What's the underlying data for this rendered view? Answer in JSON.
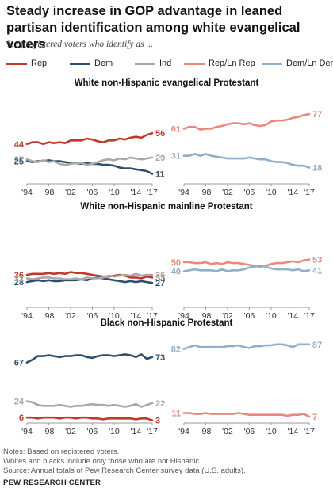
{
  "title": "Steady increase in GOP advantage in leaned partisan identification among white evangelical voters",
  "subtitle": "% of registered voters who identify as ...",
  "legend": [
    {
      "name": "Rep",
      "color": "#c0392b"
    },
    {
      "name": "Dem",
      "color": "#2c4f6e"
    },
    {
      "name": "Ind",
      "color": "#a8a8a8"
    },
    {
      "name": "Rep/Ln Rep",
      "color": "#e8897c"
    },
    {
      "name": "Dem/Ln Dem",
      "color": "#8fb0c8"
    }
  ],
  "panel_titles": [
    "White non-Hispanic evangelical Protestant",
    "White non-Hispanic mainline Protestant",
    "Black non-Hispanic Protestant"
  ],
  "notes": [
    "Notes: Based on registered voters.",
    "Whites and blacks include only those who are not Hispanic.",
    "Source: Annual totals of Pew Research Center survey data (U.S. adults)."
  ],
  "brand": "PEW RESEARCH CENTER",
  "chart_data": [
    {
      "type": "line",
      "panel": "White non-Hispanic evangelical Protestant",
      "x": [
        1994,
        1995,
        1996,
        1997,
        1998,
        1999,
        2000,
        2001,
        2002,
        2003,
        2004,
        2005,
        2006,
        2007,
        2008,
        2009,
        2010,
        2011,
        2012,
        2013,
        2014,
        2015,
        2016,
        2017
      ],
      "xticks": [
        "'94",
        "'98",
        "'02",
        "'06",
        "'10",
        "'14",
        "'17"
      ],
      "ylim": [
        0,
        100
      ],
      "series": [
        {
          "name": "Rep",
          "color": "#c0392b",
          "values": [
            44,
            46,
            46,
            44,
            46,
            45,
            46,
            45,
            48,
            48,
            48,
            50,
            49,
            47,
            46,
            48,
            48,
            50,
            49,
            51,
            52,
            51,
            54,
            56
          ],
          "start_label": "44",
          "end_label": "56"
        },
        {
          "name": "Dem",
          "color": "#2c4f6e",
          "values": [
            25,
            24,
            25,
            25,
            26,
            25,
            25,
            24,
            23,
            23,
            22,
            23,
            22,
            22,
            21,
            21,
            20,
            18,
            17,
            17,
            16,
            15,
            14,
            11
          ],
          "start_label": "25",
          "end_label": "11"
        },
        {
          "name": "Ind",
          "color": "#a8a8a8",
          "values": [
            27,
            25,
            24,
            26,
            24,
            25,
            22,
            21,
            22,
            23,
            23,
            21,
            22,
            24,
            26,
            27,
            26,
            28,
            27,
            29,
            28,
            27,
            28,
            29
          ],
          "start_label": "27",
          "end_label": "29"
        }
      ]
    },
    {
      "type": "line",
      "panel": "White non-Hispanic evangelical Protestant",
      "x": [
        1994,
        1995,
        1996,
        1997,
        1998,
        1999,
        2000,
        2001,
        2002,
        2003,
        2004,
        2005,
        2006,
        2007,
        2008,
        2009,
        2010,
        2011,
        2012,
        2013,
        2014,
        2015,
        2016,
        2017
      ],
      "xticks": [
        "'94",
        "'98",
        "'02",
        "'06",
        "'10",
        "'14",
        "'17"
      ],
      "ylim": [
        0,
        100
      ],
      "series": [
        {
          "name": "Rep/Ln Rep",
          "color": "#e8897c",
          "values": [
            61,
            63,
            63,
            60,
            61,
            61,
            63,
            64,
            66,
            67,
            67,
            66,
            67,
            65,
            64,
            65,
            69,
            70,
            70,
            71,
            73,
            74,
            76,
            77
          ],
          "start_label": "61",
          "end_label": "77"
        },
        {
          "name": "Dem/Ln Dem",
          "color": "#8fb0c8",
          "values": [
            31,
            31,
            33,
            31,
            33,
            31,
            30,
            29,
            28,
            28,
            28,
            28,
            29,
            28,
            27,
            27,
            25,
            24,
            24,
            23,
            21,
            20,
            20,
            18
          ],
          "start_label": "31",
          "end_label": "18"
        }
      ]
    },
    {
      "type": "line",
      "panel": "White non-Hispanic mainline Protestant",
      "x": [
        1994,
        1995,
        1996,
        1997,
        1998,
        1999,
        2000,
        2001,
        2002,
        2003,
        2004,
        2005,
        2006,
        2007,
        2008,
        2009,
        2010,
        2011,
        2012,
        2013,
        2014,
        2015,
        2016,
        2017
      ],
      "xticks": [
        "'94",
        "'98",
        "'02",
        "'06",
        "'10",
        "'14",
        "'17"
      ],
      "ylim": [
        0,
        100
      ],
      "series": [
        {
          "name": "Rep",
          "color": "#c0392b",
          "values": [
            36,
            37,
            37,
            37,
            38,
            37,
            38,
            37,
            39,
            38,
            38,
            37,
            36,
            35,
            34,
            34,
            35,
            36,
            35,
            33,
            33,
            32,
            34,
            33
          ],
          "start_label": "36",
          "end_label": "33"
        },
        {
          "name": "Dem",
          "color": "#2c4f6e",
          "values": [
            28,
            29,
            30,
            29,
            30,
            29,
            29,
            30,
            30,
            30,
            31,
            30,
            32,
            33,
            32,
            31,
            30,
            29,
            28,
            29,
            28,
            29,
            28,
            27
          ],
          "start_label": "28",
          "end_label": "27"
        },
        {
          "name": "Ind",
          "color": "#a8a8a8",
          "values": [
            32,
            31,
            32,
            33,
            33,
            32,
            32,
            31,
            31,
            32,
            31,
            33,
            32,
            32,
            33,
            35,
            34,
            35,
            36,
            35,
            37,
            35,
            36,
            36
          ],
          "start_label": "32",
          "end_label": "36"
        }
      ]
    },
    {
      "type": "line",
      "panel": "White non-Hispanic mainline Protestant",
      "x": [
        1994,
        1995,
        1996,
        1997,
        1998,
        1999,
        2000,
        2001,
        2002,
        2003,
        2004,
        2005,
        2006,
        2007,
        2008,
        2009,
        2010,
        2011,
        2012,
        2013,
        2014,
        2015,
        2016,
        2017
      ],
      "xticks": [
        "'94",
        "'98",
        "'02",
        "'06",
        "'10",
        "'14",
        "'17"
      ],
      "ylim": [
        0,
        100
      ],
      "series": [
        {
          "name": "Rep/Ln Rep",
          "color": "#e8897c",
          "values": [
            50,
            50,
            49,
            49,
            50,
            48,
            49,
            48,
            50,
            49,
            49,
            48,
            47,
            46,
            45,
            46,
            48,
            49,
            49,
            50,
            51,
            50,
            52,
            53
          ],
          "start_label": "50",
          "end_label": "53"
        },
        {
          "name": "Dem/Ln Dem",
          "color": "#8fb0c8",
          "values": [
            40,
            41,
            42,
            41,
            41,
            41,
            40,
            42,
            40,
            41,
            41,
            42,
            44,
            45,
            46,
            45,
            43,
            42,
            42,
            42,
            41,
            42,
            40,
            41
          ],
          "start_label": "40",
          "end_label": "41"
        }
      ]
    },
    {
      "type": "line",
      "panel": "Black non-Hispanic Protestant",
      "x": [
        1994,
        1995,
        1996,
        1997,
        1998,
        1999,
        2000,
        2001,
        2002,
        2003,
        2004,
        2005,
        2006,
        2007,
        2008,
        2009,
        2010,
        2011,
        2012,
        2013,
        2014,
        2015,
        2016,
        2017
      ],
      "xticks": [
        "'94",
        "'98",
        "'02",
        "'06",
        "'10",
        "'14",
        "'17"
      ],
      "ylim": [
        0,
        100
      ],
      "series": [
        {
          "name": "Rep",
          "color": "#c0392b",
          "values": [
            6,
            6,
            5,
            6,
            6,
            6,
            5,
            6,
            6,
            5,
            6,
            6,
            5,
            5,
            4,
            5,
            5,
            5,
            5,
            5,
            4,
            5,
            5,
            3
          ],
          "start_label": "6",
          "end_label": "3"
        },
        {
          "name": "Dem",
          "color": "#2c4f6e",
          "values": [
            67,
            70,
            74,
            74,
            75,
            74,
            73,
            74,
            74,
            75,
            75,
            73,
            72,
            74,
            75,
            75,
            74,
            75,
            76,
            75,
            73,
            76,
            71,
            73
          ],
          "start_label": "67",
          "end_label": "73"
        },
        {
          "name": "Ind",
          "color": "#a8a8a8",
          "values": [
            24,
            23,
            20,
            19,
            19,
            19,
            20,
            19,
            18,
            19,
            19,
            20,
            21,
            20,
            20,
            19,
            20,
            19,
            18,
            19,
            21,
            18,
            20,
            22
          ],
          "start_label": "24",
          "end_label": "22"
        }
      ]
    },
    {
      "type": "line",
      "panel": "Black non-Hispanic Protestant",
      "x": [
        1994,
        1995,
        1996,
        1997,
        1998,
        1999,
        2000,
        2001,
        2002,
        2003,
        2004,
        2005,
        2006,
        2007,
        2008,
        2009,
        2010,
        2011,
        2012,
        2013,
        2014,
        2015,
        2016,
        2017
      ],
      "xticks": [
        "'94",
        "'98",
        "'02",
        "'06",
        "'10",
        "'14",
        "'17"
      ],
      "ylim": [
        0,
        100
      ],
      "series": [
        {
          "name": "Rep/Ln Rep",
          "color": "#e8897c",
          "values": [
            11,
            11,
            10,
            10,
            11,
            10,
            10,
            10,
            10,
            10,
            11,
            10,
            9,
            9,
            9,
            9,
            9,
            9,
            9,
            8,
            9,
            9,
            10,
            7
          ],
          "start_label": "11",
          "end_label": "7"
        },
        {
          "name": "Dem/Ln Dem",
          "color": "#8fb0c8",
          "values": [
            82,
            84,
            86,
            84,
            84,
            84,
            84,
            84,
            85,
            85,
            86,
            84,
            83,
            85,
            85,
            86,
            86,
            87,
            87,
            86,
            84,
            87,
            87,
            87
          ],
          "start_label": "82",
          "end_label": "87"
        }
      ]
    }
  ]
}
